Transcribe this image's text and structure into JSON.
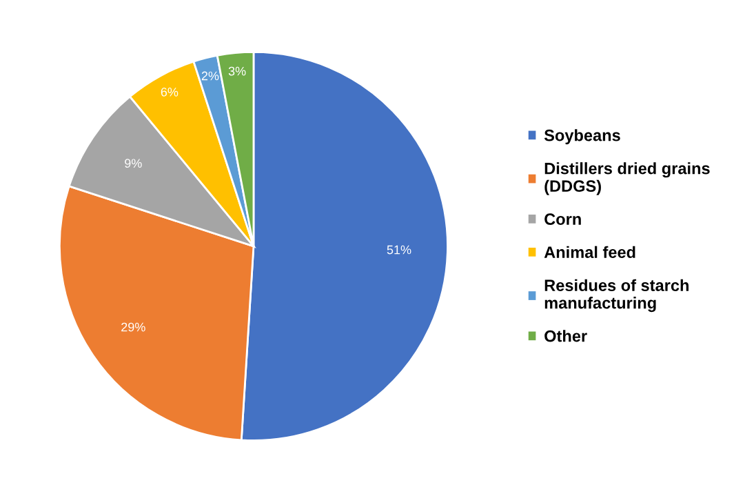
{
  "chart_data": {
    "type": "pie",
    "categories": [
      "Soybeans",
      "Distillers dried grains\n(DDGS)",
      "Corn",
      "Animal feed",
      "Residues of starch\nmanufacturing",
      "Other"
    ],
    "values": [
      51,
      29,
      9,
      6,
      2,
      3
    ],
    "colors": [
      "#4472c4",
      "#ed7d31",
      "#a5a5a5",
      "#ffc000",
      "#5b9bd5",
      "#70ad47"
    ],
    "value_labels": [
      "51%",
      "29%",
      "9%",
      "6%",
      "2%",
      "3%"
    ],
    "legend": "right"
  }
}
